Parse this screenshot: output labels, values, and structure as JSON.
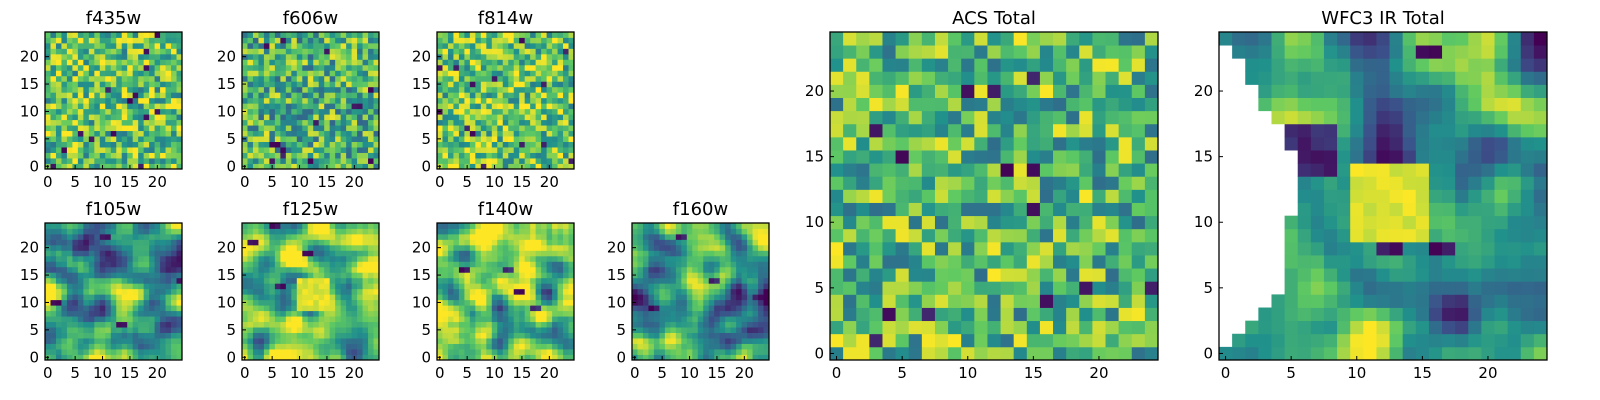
{
  "chart_data": [
    {
      "type": "heatmap",
      "title": "f435w",
      "grid": false,
      "size": 25,
      "xlim": [
        -0.5,
        24.5
      ],
      "ylim": [
        -0.5,
        24.5
      ],
      "xticks": [
        0,
        5,
        10,
        15,
        20
      ],
      "yticks": [
        0,
        5,
        10,
        15,
        20
      ],
      "values_note": "25×25 pixel intensity map, fine random texture, mostly green-yellow with scattered dark purple pixels"
    },
    {
      "type": "heatmap",
      "title": "f606w",
      "grid": false,
      "size": 25,
      "xlim": [
        -0.5,
        24.5
      ],
      "ylim": [
        -0.5,
        24.5
      ],
      "xticks": [
        0,
        5,
        10,
        15,
        20
      ],
      "yticks": [
        0,
        5,
        10,
        15,
        20
      ],
      "values_note": "25×25 pixel intensity map, fine random texture, green with scattered purple pixels"
    },
    {
      "type": "heatmap",
      "title": "f814w",
      "grid": false,
      "size": 25,
      "xlim": [
        -0.5,
        24.5
      ],
      "ylim": [
        -0.5,
        24.5
      ],
      "xticks": [
        0,
        5,
        10,
        15,
        20
      ],
      "yticks": [
        0,
        5,
        10,
        15,
        20
      ],
      "values_note": "25×25 pixel intensity map, fine random texture, yellow-green with scattered purple pixels"
    },
    {
      "type": "heatmap",
      "title": "f105w",
      "grid": false,
      "size": 25,
      "xlim": [
        -0.5,
        24.5
      ],
      "ylim": [
        -0.5,
        24.5
      ],
      "xticks": [
        0,
        5,
        10,
        15,
        20
      ],
      "yticks": [
        0,
        5,
        10,
        15,
        20
      ],
      "values_note": "25×25 map, smoother blotchy structure, green with a few purple patches"
    },
    {
      "type": "heatmap",
      "title": "f125w",
      "grid": false,
      "size": 25,
      "xlim": [
        -0.5,
        24.5
      ],
      "ylim": [
        -0.5,
        24.5
      ],
      "xticks": [
        0,
        5,
        10,
        15,
        20
      ],
      "yticks": [
        0,
        5,
        10,
        15,
        20
      ],
      "values_note": "25×25 map, smooth, bright yellow centre region, few dark patches on left"
    },
    {
      "type": "heatmap",
      "title": "f140w",
      "grid": false,
      "size": 25,
      "xlim": [
        -0.5,
        24.5
      ],
      "ylim": [
        -0.5,
        24.5
      ],
      "xticks": [
        0,
        5,
        10,
        15,
        20
      ],
      "yticks": [
        0,
        5,
        10,
        15,
        20
      ],
      "values_note": "25×25 map, smooth, yellow-green with a few purple patches"
    },
    {
      "type": "heatmap",
      "title": "f160w",
      "grid": false,
      "size": 25,
      "xlim": [
        -0.5,
        24.5
      ],
      "ylim": [
        -0.5,
        24.5
      ],
      "xticks": [
        0,
        5,
        10,
        15,
        20
      ],
      "yticks": [
        0,
        5,
        10,
        15,
        20
      ],
      "values_note": "25×25 map, smooth, teal-green with dark patches and a bright spot near centre"
    },
    {
      "type": "heatmap",
      "title": "ACS Total",
      "grid": false,
      "size": 25,
      "xlim": [
        -0.5,
        24.5
      ],
      "ylim": [
        -0.5,
        24.5
      ],
      "xticks": [
        0,
        5,
        10,
        15,
        20
      ],
      "yticks": [
        0,
        5,
        10,
        15,
        20
      ],
      "values_note": "25×25 pixel map, random texture, green-yellow with scattered dark purple pixels"
    },
    {
      "type": "heatmap",
      "title": "WFC3 IR Total",
      "grid": false,
      "size": 25,
      "xlim": [
        -0.5,
        24.5
      ],
      "ylim": [
        -0.5,
        24.5
      ],
      "xticks": [
        0,
        5,
        10,
        15,
        20
      ],
      "yticks": [
        0,
        5,
        10,
        15,
        20
      ],
      "values_note": "25×25 map, smooth, masked (blank) region along left edge, bright yellow blob near centre, dark purple blob upper left"
    }
  ],
  "colormap": [
    "#440154",
    "#3b528b",
    "#21918c",
    "#5ec962",
    "#fde725"
  ]
}
